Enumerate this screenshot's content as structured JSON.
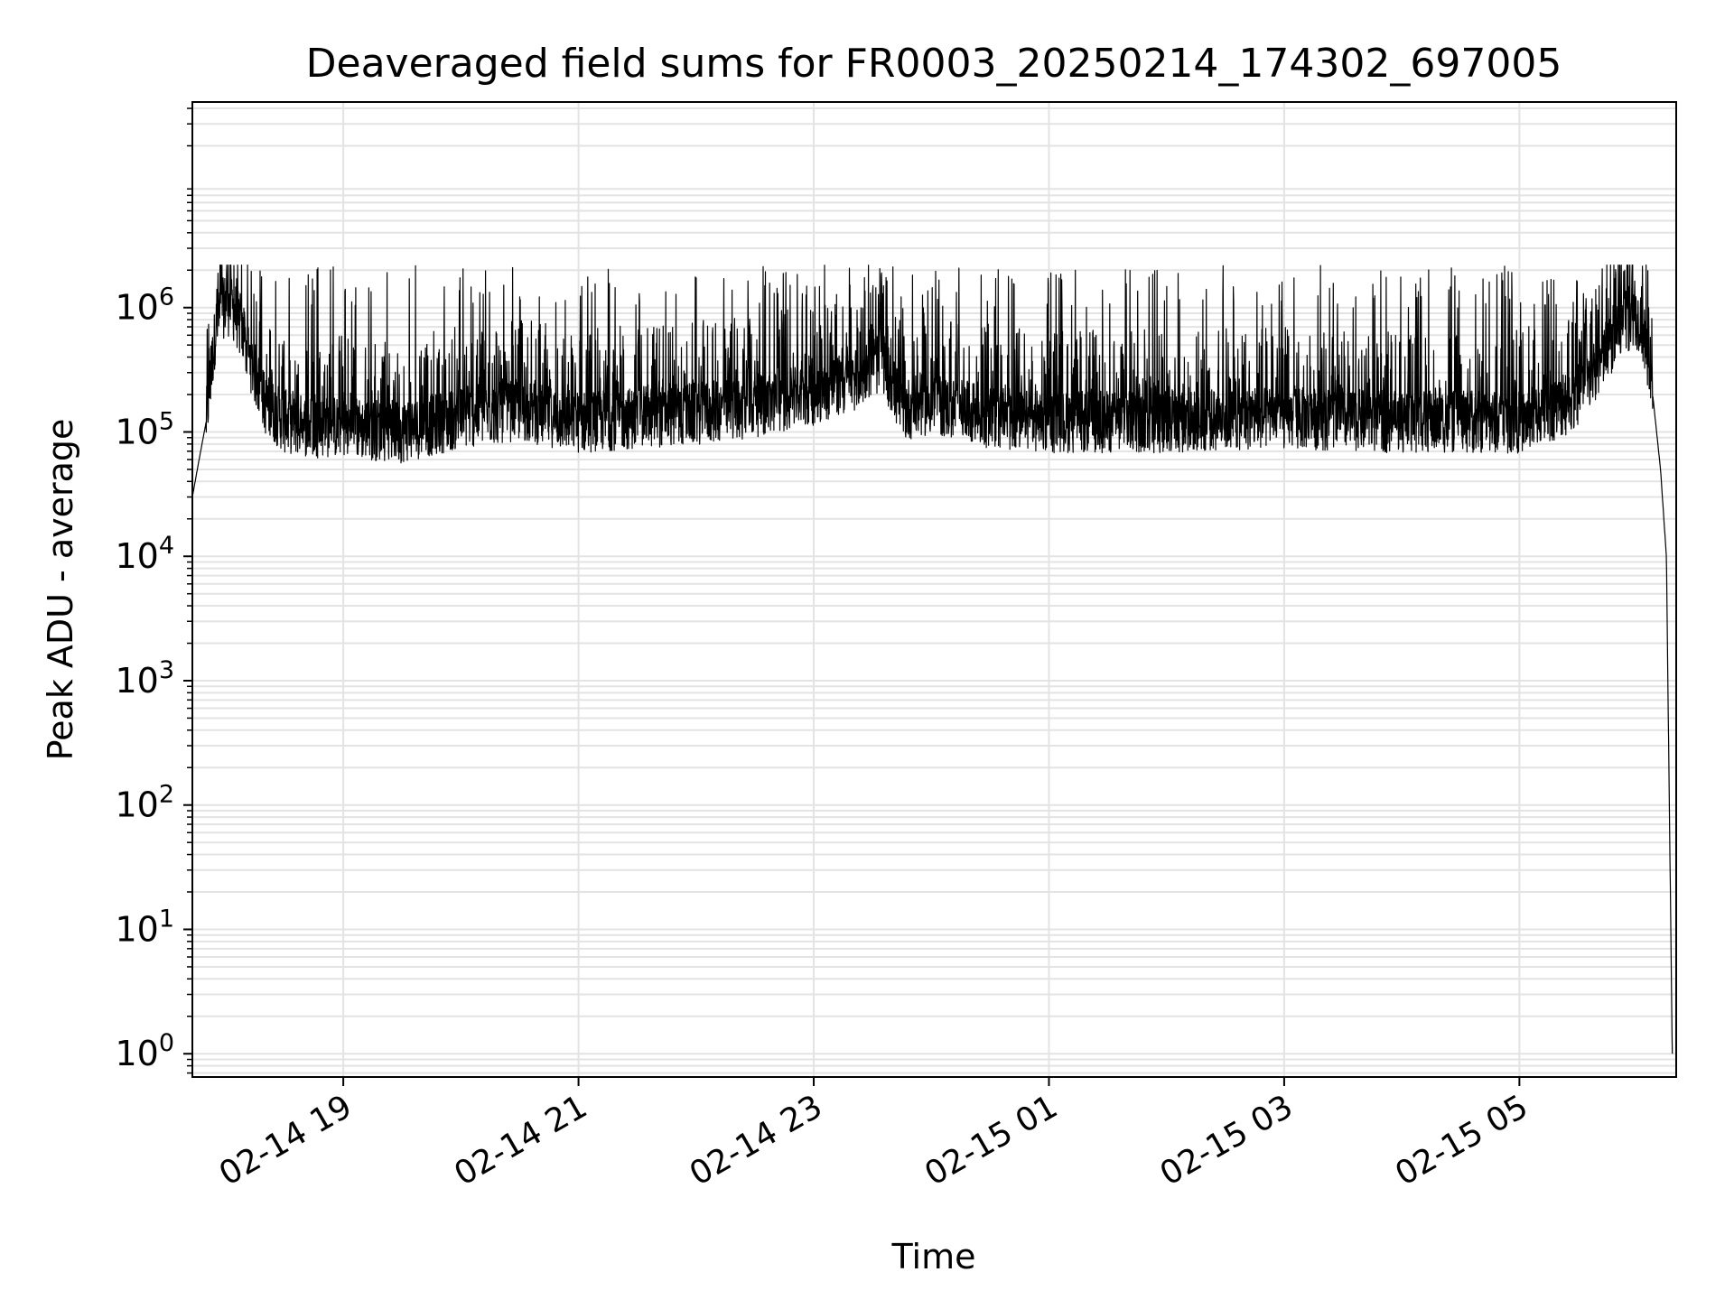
{
  "chart_data": {
    "type": "line",
    "title": "Deaveraged field sums for FR0003_20250214_174302_697005",
    "xlabel": "Time",
    "ylabel": "Peak ADU - average",
    "yscale": "log",
    "grid": true,
    "x_range": [
      "2025-02-14 17:43",
      "2025-02-15 06:20"
    ],
    "ylim": [
      0.65,
      45000000
    ],
    "x_ticks": [
      {
        "value": "2025-02-14 19:00",
        "label": "02-14 19"
      },
      {
        "value": "2025-02-14 21:00",
        "label": "02-14 21"
      },
      {
        "value": "2025-02-14 23:00",
        "label": "02-14 23"
      },
      {
        "value": "2025-02-15 01:00",
        "label": "02-15 01"
      },
      {
        "value": "2025-02-15 03:00",
        "label": "02-15 03"
      },
      {
        "value": "2025-02-15 05:00",
        "label": "02-15 05"
      }
    ],
    "y_ticks": [
      {
        "value": 1,
        "base": "10",
        "exp": "0"
      },
      {
        "value": 10,
        "base": "10",
        "exp": "1"
      },
      {
        "value": 100,
        "base": "10",
        "exp": "2"
      },
      {
        "value": 1000,
        "base": "10",
        "exp": "3"
      },
      {
        "value": 10000,
        "base": "10",
        "exp": "4"
      },
      {
        "value": 100000,
        "base": "10",
        "exp": "5"
      },
      {
        "value": 1000000,
        "base": "10",
        "exp": "6"
      }
    ],
    "series": [
      {
        "color": "#000000",
        "x": [
          "2025-02-14 17:43",
          "2025-02-14 17:46",
          "2025-02-14 17:50",
          "2025-02-14 17:55",
          "2025-02-14 18:00",
          "2025-02-14 18:05",
          "2025-02-14 18:10",
          "2025-02-14 18:20",
          "2025-02-14 18:30",
          "2025-02-14 18:45",
          "2025-02-14 19:00",
          "2025-02-14 19:30",
          "2025-02-14 20:00",
          "2025-02-14 20:30",
          "2025-02-14 21:00",
          "2025-02-14 21:30",
          "2025-02-14 22:00",
          "2025-02-14 22:30",
          "2025-02-14 23:00",
          "2025-02-14 23:20",
          "2025-02-14 23:35",
          "2025-02-14 23:45",
          "2025-02-15 00:00",
          "2025-02-15 00:30",
          "2025-02-15 01:00",
          "2025-02-15 02:00",
          "2025-02-15 03:00",
          "2025-02-15 04:00",
          "2025-02-15 05:00",
          "2025-02-15 05:30",
          "2025-02-15 05:45",
          "2025-02-15 05:55",
          "2025-02-15 06:02",
          "2025-02-15 06:08",
          "2025-02-15 06:12",
          "2025-02-15 06:15",
          "2025-02-15 06:18"
        ],
        "y": [
          30000,
          55000,
          120000,
          700000,
          1100000,
          900000,
          500000,
          170000,
          120000,
          110000,
          110000,
          100000,
          130000,
          150000,
          120000,
          130000,
          140000,
          160000,
          200000,
          260000,
          380000,
          150000,
          170000,
          130000,
          120000,
          120000,
          130000,
          120000,
          120000,
          180000,
          450000,
          800000,
          800000,
          200000,
          50000,
          10000,
          1
        ],
        "spike_max": 2200000,
        "trough_min": 40000
      }
    ]
  }
}
